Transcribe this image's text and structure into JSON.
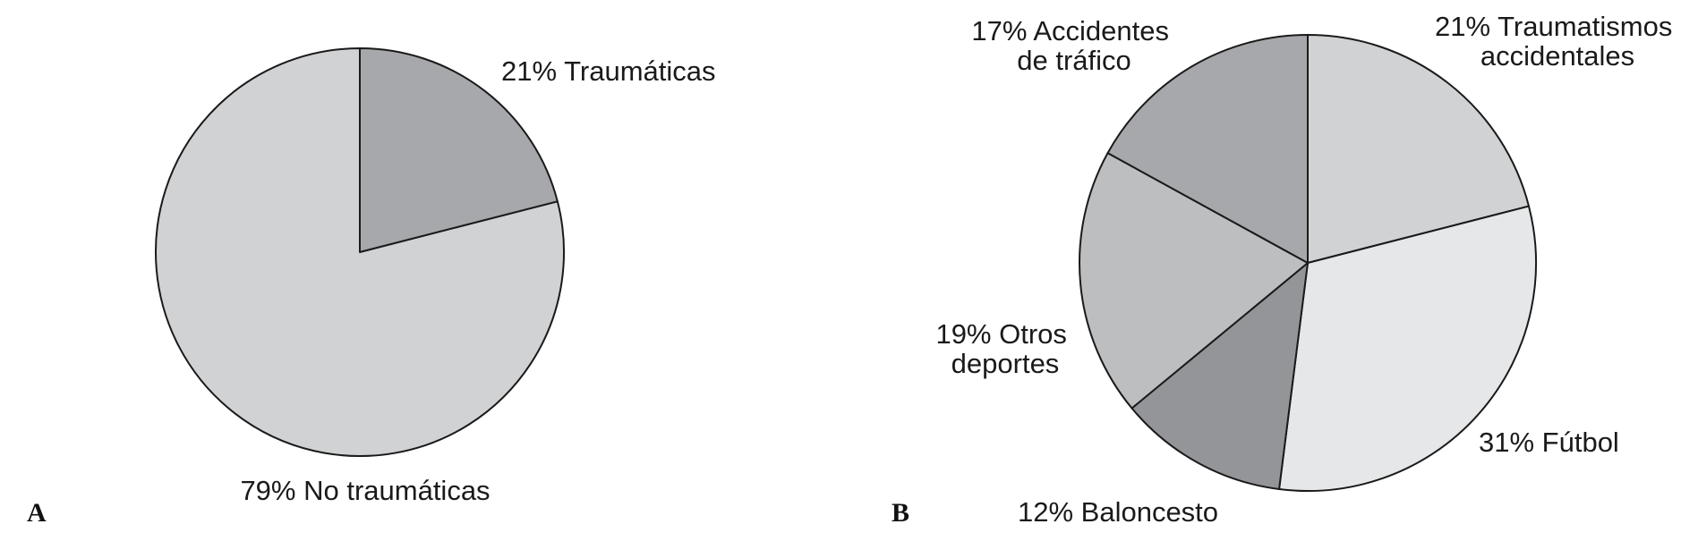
{
  "chart_data": [
    {
      "type": "pie",
      "panel_label": "A",
      "start": "12 o'clock",
      "direction": "clockwise",
      "slices": [
        {
          "label": "21% Traumáticas",
          "value": 21,
          "color": "#a7a8ab"
        },
        {
          "label": "79% No traumáticas",
          "value": 79,
          "color": "#d1d2d4"
        }
      ]
    },
    {
      "type": "pie",
      "panel_label": "B",
      "start": "12 o'clock",
      "direction": "clockwise",
      "slices": [
        {
          "label": "21% Traumatismos accidentales",
          "value": 21,
          "color": "#d1d2d4"
        },
        {
          "label": "31% Fútbol",
          "value": 31,
          "color": "#e6e7e8"
        },
        {
          "label": "12% Baloncesto",
          "value": 12,
          "color": "#939598"
        },
        {
          "label": "19% Otros deportes",
          "value": 19,
          "color": "#bcbec0"
        },
        {
          "label": "17% Accidentes de tráfico",
          "value": 17,
          "color": "#a7a8ab"
        }
      ]
    }
  ]
}
